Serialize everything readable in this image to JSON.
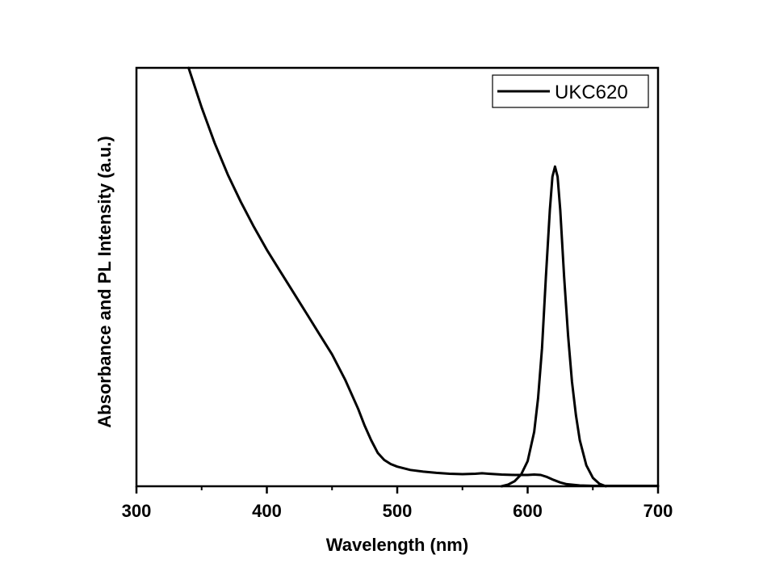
{
  "chart_data": {
    "type": "line",
    "title": "",
    "xlabel": "Wavelength (nm)",
    "ylabel": "Absorbance and PL Intensity (a.u.)",
    "xlim": [
      300,
      700
    ],
    "ylim": [
      0,
      1.0
    ],
    "xticks": [
      300,
      400,
      500,
      600,
      700
    ],
    "xtick_labels": [
      "300",
      "400",
      "500",
      "600",
      "700"
    ],
    "y_tick_labels_shown": false,
    "legend": {
      "position": "top-right",
      "entries": [
        "UKC620"
      ]
    },
    "series": [
      {
        "name": "UKC620",
        "role": "Absorbance",
        "x": [
          340,
          350,
          360,
          370,
          380,
          390,
          400,
          410,
          420,
          430,
          440,
          450,
          460,
          470,
          475,
          480,
          485,
          490,
          495,
          500,
          510,
          520,
          530,
          540,
          550,
          560,
          565,
          570,
          580,
          590,
          600,
          605,
          610,
          615,
          620,
          625,
          630,
          640,
          650,
          660,
          680,
          700
        ],
        "y": [
          1.0,
          0.905,
          0.82,
          0.745,
          0.68,
          0.62,
          0.565,
          0.515,
          0.465,
          0.415,
          0.365,
          0.315,
          0.255,
          0.185,
          0.145,
          0.11,
          0.08,
          0.063,
          0.053,
          0.047,
          0.039,
          0.035,
          0.032,
          0.03,
          0.029,
          0.03,
          0.031,
          0.03,
          0.028,
          0.027,
          0.027,
          0.028,
          0.027,
          0.022,
          0.015,
          0.009,
          0.005,
          0.002,
          0.001,
          0.001,
          0.001,
          0.001
        ]
      },
      {
        "name": "UKC620",
        "role": "PL",
        "x": [
          580,
          585,
          590,
          595,
          600,
          605,
          608,
          611,
          614,
          617,
          619,
          621,
          623,
          625,
          628,
          631,
          634,
          637,
          640,
          645,
          650,
          655,
          660
        ],
        "y": [
          0.0,
          0.004,
          0.012,
          0.028,
          0.06,
          0.13,
          0.21,
          0.33,
          0.5,
          0.66,
          0.74,
          0.764,
          0.74,
          0.66,
          0.5,
          0.36,
          0.25,
          0.17,
          0.11,
          0.05,
          0.02,
          0.006,
          0.0
        ]
      }
    ]
  }
}
